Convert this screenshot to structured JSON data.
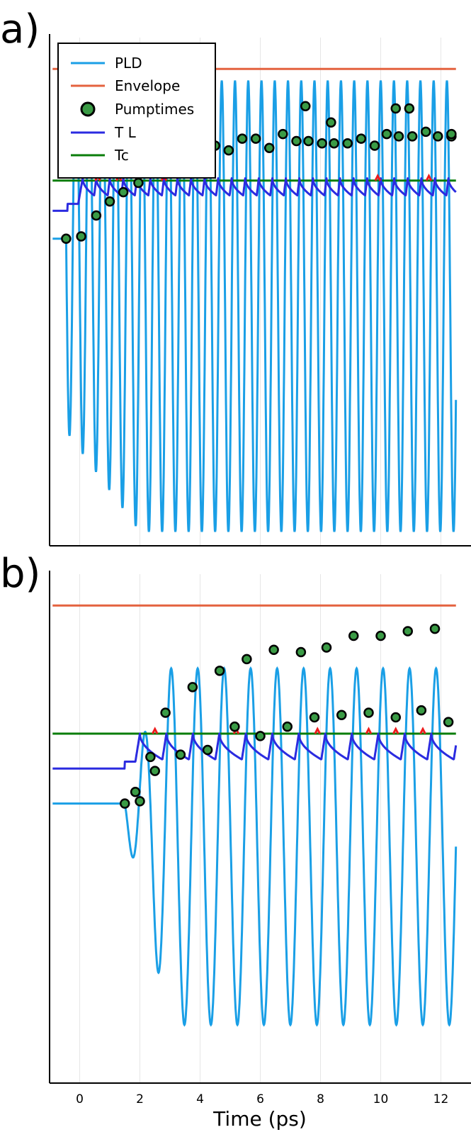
{
  "figure": {
    "xlabel": "Time (ps)",
    "x_ticks": [
      0,
      2,
      4,
      6,
      8,
      10,
      12
    ],
    "colors": {
      "pld": "#1a9fe6",
      "envelope": "#e4623f",
      "pumptimes_fill": "#3a9b45",
      "pumptimes_edge": "#000000",
      "tl": "#2b2be0",
      "tc": "#0a7d0a",
      "above_tc": "#ee1c1c",
      "grid": "#e6e6e6"
    }
  },
  "chart_data": [
    {
      "type": "line",
      "panel": "a)",
      "xlim": [
        -1,
        13
      ],
      "ylim": [
        -1.2,
        1.0
      ],
      "grid": "vertical",
      "legend_position": "top-left",
      "legend": [
        "PLD",
        "Envelope",
        "Pumptimes",
        "T L",
        "Tc"
      ],
      "xlabel": "",
      "ylabel": "",
      "series": [
        {
          "name": "Envelope",
          "kind": "hline",
          "x": [
            -0.9,
            12.5
          ],
          "y": 0.85
        },
        {
          "name": "Tc",
          "kind": "hline",
          "x": [
            -0.9,
            12.5
          ],
          "y": 0.37
        },
        {
          "name": "PLD",
          "kind": "oscillation",
          "x_start": -0.9,
          "x_end": 12.5,
          "baseline": 0.12,
          "pump_start": -0.45,
          "kick_end": 2.0,
          "period": 0.44,
          "max_value": 0.8,
          "min_value": -1.14,
          "first_min": -0.8,
          "tail_value": -0.63
        },
        {
          "name": "T L",
          "kind": "pulses",
          "x_start": -0.9,
          "x_end": 12.5,
          "baseline": 0.24,
          "step_x": -0.4,
          "step_value": 0.27,
          "first_peak_x": 0.1,
          "pulse_period": 0.45,
          "peak_value": 0.38,
          "trough_value": 0.3,
          "overshoot_x": [
            0.6,
            1.3,
            2.8,
            9.9,
            11.6
          ],
          "overshoot_value": 0.39
        },
        {
          "name": "Pumptimes",
          "kind": "scatter",
          "x": [
            -0.45,
            0.05,
            0.55,
            1.0,
            1.45,
            1.95,
            2.35,
            2.8,
            3.25,
            4.5,
            4.95,
            5.4,
            5.85,
            6.3,
            6.75,
            7.2,
            7.6,
            8.05,
            8.45,
            8.9,
            9.35,
            9.8,
            10.2,
            10.6,
            11.05,
            11.5,
            11.9,
            12.35,
            7.5,
            8.35,
            10.5,
            10.95,
            12.35
          ],
          "y": [
            0.12,
            0.13,
            0.22,
            0.28,
            0.32,
            0.36,
            0.47,
            0.45,
            0.46,
            0.52,
            0.5,
            0.55,
            0.55,
            0.51,
            0.57,
            0.54,
            0.54,
            0.53,
            0.53,
            0.53,
            0.55,
            0.52,
            0.57,
            0.56,
            0.56,
            0.58,
            0.56,
            0.56,
            0.69,
            0.62,
            0.68,
            0.68,
            0.57
          ]
        }
      ]
    },
    {
      "type": "line",
      "panel": "b)",
      "xlim": [
        -1,
        13
      ],
      "ylim": [
        -1.2,
        1.0
      ],
      "grid": "vertical",
      "legend_position": "none",
      "xlabel": "Time (ps)",
      "ylabel": "",
      "series": [
        {
          "name": "Envelope",
          "kind": "hline",
          "x": [
            -0.9,
            12.5
          ],
          "y": 0.85
        },
        {
          "name": "Tc",
          "kind": "hline",
          "x": [
            -0.9,
            12.5
          ],
          "y": 0.3
        },
        {
          "name": "PLD",
          "kind": "oscillation",
          "x_start": -0.9,
          "x_end": 12.5,
          "baseline": 0.0,
          "pump_start": 1.5,
          "kick_end": 3.0,
          "period": 0.88,
          "max_value": 0.58,
          "min_value": -0.95,
          "first_min": -0.1,
          "tail_value": 0.05
        },
        {
          "name": "T L",
          "kind": "pulses",
          "x_start": -0.9,
          "x_end": 12.5,
          "baseline": 0.15,
          "step_x": 1.5,
          "step_value": 0.18,
          "first_peak_x": 2.0,
          "pulse_period": 0.88,
          "peak_value": 0.3,
          "trough_value": 0.18,
          "overshoot_x": [
            2.5,
            5.2,
            7.9,
            9.6,
            10.5,
            11.4
          ],
          "overshoot_value": 0.32
        },
        {
          "name": "Pumptimes",
          "kind": "scatter",
          "x": [
            1.5,
            1.85,
            2.0,
            2.35,
            2.5,
            2.85,
            3.35,
            3.75,
            4.25,
            4.65,
            5.15,
            5.55,
            6.0,
            6.45,
            6.9,
            7.35,
            7.8,
            8.2,
            8.7,
            9.1,
            9.6,
            10.0,
            10.5,
            10.9,
            11.35,
            11.8,
            12.25
          ],
          "y": [
            0.0,
            0.05,
            0.01,
            0.2,
            0.14,
            0.39,
            0.21,
            0.5,
            0.23,
            0.57,
            0.33,
            0.62,
            0.29,
            0.66,
            0.33,
            0.65,
            0.37,
            0.67,
            0.38,
            0.72,
            0.39,
            0.72,
            0.37,
            0.74,
            0.4,
            0.75,
            0.35
          ]
        }
      ]
    }
  ]
}
